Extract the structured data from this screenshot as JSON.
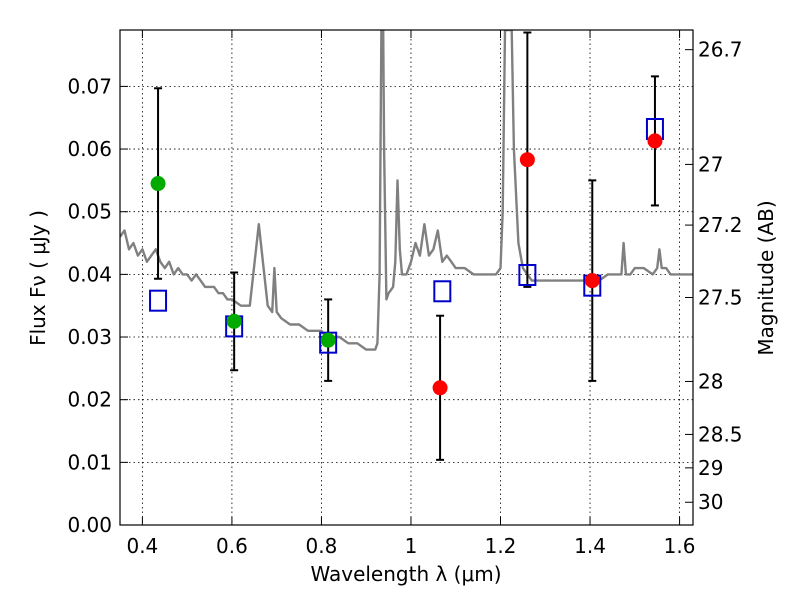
{
  "chart_data": {
    "type": "scatter",
    "title": "",
    "xlabel": "Wavelength  λ (μm)",
    "ylabel": "Flux  Fν  ( μJy )",
    "ylabel2": "Magnitude (AB)",
    "xlim": [
      0.35,
      1.63
    ],
    "ylim": [
      0.0,
      0.079
    ],
    "grid": true,
    "x_ticks": [
      0.4,
      0.6,
      0.8,
      1.0,
      1.2,
      1.4,
      1.6
    ],
    "x_tick_labels": [
      "0.4",
      "0.6",
      "0.8",
      "1",
      "1.2",
      "1.4",
      "1.6"
    ],
    "y_ticks": [
      0.0,
      0.01,
      0.02,
      0.03,
      0.04,
      0.05,
      0.06,
      0.07
    ],
    "y_tick_labels": [
      "0.00",
      "0.01",
      "0.02",
      "0.03",
      "0.04",
      "0.05",
      "0.06",
      "0.07"
    ],
    "mag_ticks": [
      26.7,
      27,
      27.2,
      27.5,
      28,
      28.5,
      29,
      30
    ],
    "mag_tick_labels": [
      "26.7",
      "27",
      "27.2",
      "27.5",
      "28",
      "28.5",
      "29",
      "30"
    ],
    "colors": {
      "spectrum": "#808080",
      "green": "#00aa00",
      "red": "#ff0000",
      "model": "#0000cc",
      "errorbar": "#000000"
    },
    "spectrum": {
      "x": [
        0.35,
        0.36,
        0.37,
        0.38,
        0.39,
        0.4,
        0.41,
        0.42,
        0.43,
        0.44,
        0.45,
        0.46,
        0.47,
        0.48,
        0.49,
        0.5,
        0.51,
        0.52,
        0.53,
        0.54,
        0.55,
        0.56,
        0.57,
        0.58,
        0.59,
        0.6,
        0.62,
        0.64,
        0.66,
        0.68,
        0.69,
        0.695,
        0.7,
        0.71,
        0.73,
        0.75,
        0.77,
        0.79,
        0.8,
        0.81,
        0.82,
        0.84,
        0.86,
        0.88,
        0.9,
        0.91,
        0.92,
        0.925,
        0.93,
        0.932,
        0.934,
        0.936,
        0.938,
        0.94,
        0.945,
        0.95,
        0.96,
        0.965,
        0.97,
        0.975,
        0.98,
        0.99,
        1.0,
        1.01,
        1.02,
        1.03,
        1.04,
        1.05,
        1.06,
        1.07,
        1.08,
        1.09,
        1.1,
        1.12,
        1.14,
        1.16,
        1.18,
        1.19,
        1.2,
        1.205,
        1.21,
        1.215,
        1.22,
        1.225,
        1.23,
        1.24,
        1.25,
        1.26,
        1.27,
        1.28,
        1.3,
        1.32,
        1.34,
        1.36,
        1.38,
        1.4,
        1.42,
        1.44,
        1.46,
        1.47,
        1.475,
        1.48,
        1.49,
        1.5,
        1.52,
        1.54,
        1.55,
        1.555,
        1.56,
        1.57,
        1.58,
        1.59,
        1.6,
        1.61,
        1.62,
        1.63
      ],
      "y": [
        0.046,
        0.047,
        0.044,
        0.045,
        0.043,
        0.044,
        0.042,
        0.043,
        0.044,
        0.042,
        0.041,
        0.042,
        0.04,
        0.041,
        0.04,
        0.04,
        0.039,
        0.04,
        0.039,
        0.038,
        0.038,
        0.038,
        0.037,
        0.037,
        0.036,
        0.036,
        0.035,
        0.035,
        0.048,
        0.035,
        0.034,
        0.041,
        0.034,
        0.033,
        0.032,
        0.032,
        0.031,
        0.031,
        0.031,
        0.03,
        0.03,
        0.03,
        0.029,
        0.029,
        0.028,
        0.028,
        0.028,
        0.029,
        0.04,
        0.06,
        0.079,
        0.079,
        0.079,
        0.06,
        0.036,
        0.037,
        0.038,
        0.042,
        0.055,
        0.044,
        0.04,
        0.04,
        0.042,
        0.045,
        0.043,
        0.048,
        0.043,
        0.044,
        0.047,
        0.042,
        0.043,
        0.042,
        0.041,
        0.041,
        0.04,
        0.04,
        0.04,
        0.04,
        0.041,
        0.05,
        0.079,
        0.079,
        0.079,
        0.079,
        0.06,
        0.045,
        0.041,
        0.04,
        0.039,
        0.039,
        0.039,
        0.039,
        0.039,
        0.039,
        0.039,
        0.039,
        0.039,
        0.04,
        0.04,
        0.04,
        0.045,
        0.04,
        0.04,
        0.041,
        0.041,
        0.04,
        0.041,
        0.044,
        0.041,
        0.041,
        0.04,
        0.04,
        0.04,
        0.04,
        0.04,
        0.04
      ]
    },
    "series": [
      {
        "color": "green",
        "marker": "circle",
        "x": [
          0.435,
          0.605,
          0.815
        ],
        "y": [
          0.0545,
          0.0325,
          0.0295
        ],
        "err_low": [
          0.0152,
          0.0078,
          0.0065
        ],
        "err_high": [
          0.0152,
          0.0078,
          0.0065
        ]
      },
      {
        "color": "red",
        "marker": "circle",
        "x": [
          1.065,
          1.26,
          1.405,
          1.545
        ],
        "y": [
          0.0219,
          0.0583,
          0.039,
          0.0613
        ],
        "err_low": [
          0.0115,
          0.0203,
          0.016,
          0.0103
        ],
        "err_high": [
          0.0115,
          0.0203,
          0.016,
          0.0103
        ]
      },
      {
        "color": "model",
        "marker": "open-square",
        "x": [
          0.435,
          0.605,
          0.815,
          1.07,
          1.26,
          1.405,
          1.545
        ],
        "y": [
          0.0358,
          0.0317,
          0.0291,
          0.0373,
          0.0399,
          0.0382,
          0.0632
        ]
      }
    ]
  }
}
